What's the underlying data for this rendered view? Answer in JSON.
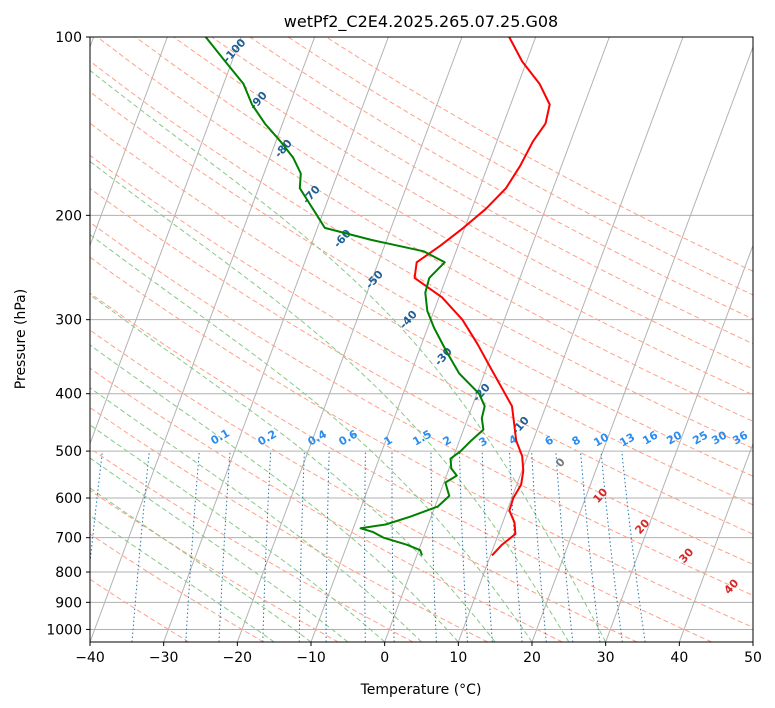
{
  "chart_data": {
    "type": "skew-t",
    "title": "wetPf2_C2E4.2025.265.07.25.G08",
    "xlabel": "Temperature (°C)",
    "ylabel": "Pressure (hPa)",
    "xlim": [
      -40,
      50
    ],
    "ylim": [
      1050,
      100
    ],
    "xticks": [
      -40,
      -30,
      -20,
      -10,
      0,
      10,
      20,
      30,
      40,
      50
    ],
    "xtick_labels": [
      "−40",
      "−30",
      "−20",
      "−10",
      "0",
      "10",
      "20",
      "30",
      "40",
      "50"
    ],
    "yticks": [
      100,
      200,
      300,
      400,
      500,
      600,
      700,
      800,
      900,
      1000
    ],
    "ytick_labels": [
      "100",
      "200",
      "300",
      "400",
      "500",
      "600",
      "700",
      "800",
      "900",
      "1000"
    ],
    "series": [
      {
        "name": "temperature",
        "color": "#ff0000",
        "points": [
          [
            750,
            10.2
          ],
          [
            720,
            11.0
          ],
          [
            690,
            12.3
          ],
          [
            660,
            11.6
          ],
          [
            630,
            10.3
          ],
          [
            600,
            10.2
          ],
          [
            570,
            10.6
          ],
          [
            540,
            10.2
          ],
          [
            510,
            9.3
          ],
          [
            480,
            7.7
          ],
          [
            450,
            6.6
          ],
          [
            420,
            5.4
          ],
          [
            390,
            3.0
          ],
          [
            360,
            0.4
          ],
          [
            330,
            -2.4
          ],
          [
            300,
            -5.7
          ],
          [
            275,
            -9.6
          ],
          [
            255,
            -14.3
          ],
          [
            240,
            -14.8
          ],
          [
            225,
            -12.4
          ],
          [
            210,
            -10.2
          ],
          [
            195,
            -8.1
          ],
          [
            180,
            -6.4
          ],
          [
            165,
            -5.6
          ],
          [
            150,
            -5.1
          ],
          [
            140,
            -4.3
          ],
          [
            130,
            -4.7
          ],
          [
            120,
            -7.1
          ],
          [
            110,
            -10.6
          ],
          [
            100,
            -13.6
          ]
        ]
      },
      {
        "name": "dewpoint",
        "color": "#008000",
        "points": [
          [
            750,
            0.7
          ],
          [
            735,
            0.2
          ],
          [
            720,
            -1.8
          ],
          [
            700,
            -5.4
          ],
          [
            685,
            -7.1
          ],
          [
            675,
            -9.0
          ],
          [
            665,
            -5.8
          ],
          [
            645,
            -2.8
          ],
          [
            620,
            0.4
          ],
          [
            595,
            1.4
          ],
          [
            580,
            0.8
          ],
          [
            565,
            0.2
          ],
          [
            550,
            1.4
          ],
          [
            535,
            0.3
          ],
          [
            515,
            -0.3
          ],
          [
            500,
            0.7
          ],
          [
            480,
            1.6
          ],
          [
            460,
            2.7
          ],
          [
            440,
            1.9
          ],
          [
            420,
            1.7
          ],
          [
            400,
            0.3
          ],
          [
            370,
            -3.4
          ],
          [
            340,
            -6.2
          ],
          [
            310,
            -9.1
          ],
          [
            290,
            -10.9
          ],
          [
            270,
            -12.1
          ],
          [
            255,
            -12.3
          ],
          [
            240,
            -11.0
          ],
          [
            230,
            -14.4
          ],
          [
            220,
            -22.1
          ],
          [
            210,
            -29.0
          ],
          [
            200,
            -30.7
          ],
          [
            190,
            -32.5
          ],
          [
            180,
            -34.4
          ],
          [
            170,
            -35.0
          ],
          [
            160,
            -36.8
          ],
          [
            150,
            -39.4
          ],
          [
            140,
            -42.4
          ],
          [
            130,
            -45.1
          ],
          [
            120,
            -47.3
          ],
          [
            110,
            -50.9
          ],
          [
            100,
            -54.8
          ]
        ]
      }
    ],
    "dry_adiabats": [
      -30,
      -20,
      -10,
      0,
      10,
      20,
      30,
      40,
      50,
      60,
      70,
      80,
      90,
      100,
      110,
      120,
      130,
      140,
      150,
      160,
      170,
      180
    ],
    "moist_adiabats": [
      -15,
      -10,
      -5,
      0,
      5,
      10,
      15,
      20,
      25,
      30
    ],
    "dry_adiabat_labels": [
      "-100",
      "-90",
      "-80",
      "-70",
      "-60",
      "-50",
      "-40",
      "-30",
      "-20",
      "-10",
      "0"
    ],
    "moist_adiabat_labels": [
      "10",
      "20",
      "30",
      "40"
    ],
    "mixing_ratios": [
      0.1,
      0.2,
      0.4,
      0.6,
      1,
      1.5,
      2,
      3,
      4,
      6,
      8,
      10,
      13,
      16,
      20,
      25,
      30,
      36
    ],
    "mixing_ratio_labels": [
      "0.1",
      "0.2",
      "0.4",
      "0.6",
      "1",
      "1.5",
      "2",
      "3",
      "4",
      "6",
      "8",
      "10",
      "13",
      "16",
      "20",
      "25",
      "30",
      "36"
    ],
    "colors": {
      "temperature": "#ff0000",
      "dewpoint": "#008000",
      "isotherm": "#b3b3b3",
      "dry_adiabat": "#ffa088",
      "moist_adiabat": "#88c888",
      "mixing_ratio": "#1f77b4",
      "mixing_label": "#2a8cf0",
      "dry_label": "#1f5f96",
      "moist_label": "#d62728",
      "grid": "#b0b0b0",
      "lcl_label": "#777777"
    }
  }
}
